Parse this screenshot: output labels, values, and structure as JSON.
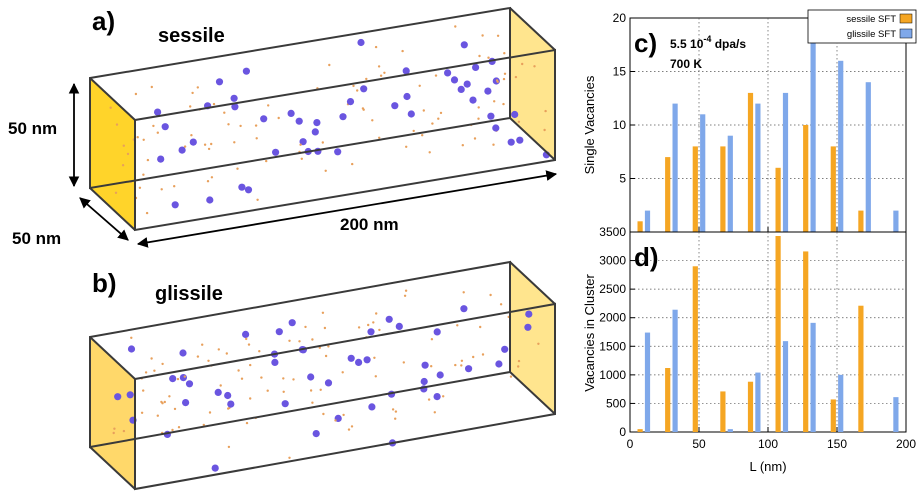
{
  "panels": {
    "a": {
      "label": "a)",
      "title": "sessile"
    },
    "b": {
      "label": "b)",
      "title": "glissile"
    },
    "c": {
      "label": "c)"
    },
    "d": {
      "label": "d)"
    }
  },
  "dimensions": {
    "height": "50 nm",
    "depth": "50 nm",
    "length": "200 nm"
  },
  "conditions": {
    "rate_value": "5.5 10",
    "rate_exponent": "-4",
    "rate_unit": " dpa/s",
    "temperature": "700 K"
  },
  "colors": {
    "sessile": "#f5a623",
    "glissile": "#7fa8ea",
    "cluster": "#6a55e0",
    "vacancy": "#e8a05c",
    "face": "#ffd54a"
  },
  "chart_data": [
    {
      "id": "c",
      "type": "bar",
      "xlabel": "L (nm)",
      "ylabel": "Single Vacancies",
      "xlim": [
        0,
        200
      ],
      "ylim": [
        0,
        20
      ],
      "yticks": [
        5,
        10,
        15,
        20
      ],
      "grid": true,
      "legend": "top-right",
      "categories": [
        10,
        30,
        50,
        70,
        90,
        110,
        130,
        150,
        170,
        190
      ],
      "series": [
        {
          "name": "sessile SFT",
          "values": [
            1,
            7,
            8,
            8,
            13,
            6,
            10,
            8,
            2,
            0
          ]
        },
        {
          "name": "glissile SFT",
          "values": [
            2,
            12,
            11,
            9,
            12,
            13,
            18,
            16,
            14,
            2
          ]
        }
      ]
    },
    {
      "id": "d",
      "type": "bar",
      "xlabel": "L (nm)",
      "ylabel": "Vacancies in Cluster",
      "xlim": [
        0,
        200
      ],
      "ylim": [
        0,
        3500
      ],
      "yticks": [
        0,
        500,
        1000,
        1500,
        2000,
        2500,
        3000,
        3500
      ],
      "xticks": [
        0,
        50,
        100,
        150,
        200
      ],
      "grid": true,
      "categories": [
        10,
        30,
        50,
        70,
        90,
        110,
        130,
        150,
        170,
        190
      ],
      "series": [
        {
          "name": "sessile SFT",
          "values": [
            50,
            1120,
            2900,
            710,
            880,
            3430,
            3160,
            570,
            2210,
            0
          ]
        },
        {
          "name": "glissile SFT",
          "values": [
            1740,
            2140,
            0,
            50,
            1040,
            1590,
            1910,
            1000,
            0,
            610
          ]
        }
      ]
    }
  ]
}
